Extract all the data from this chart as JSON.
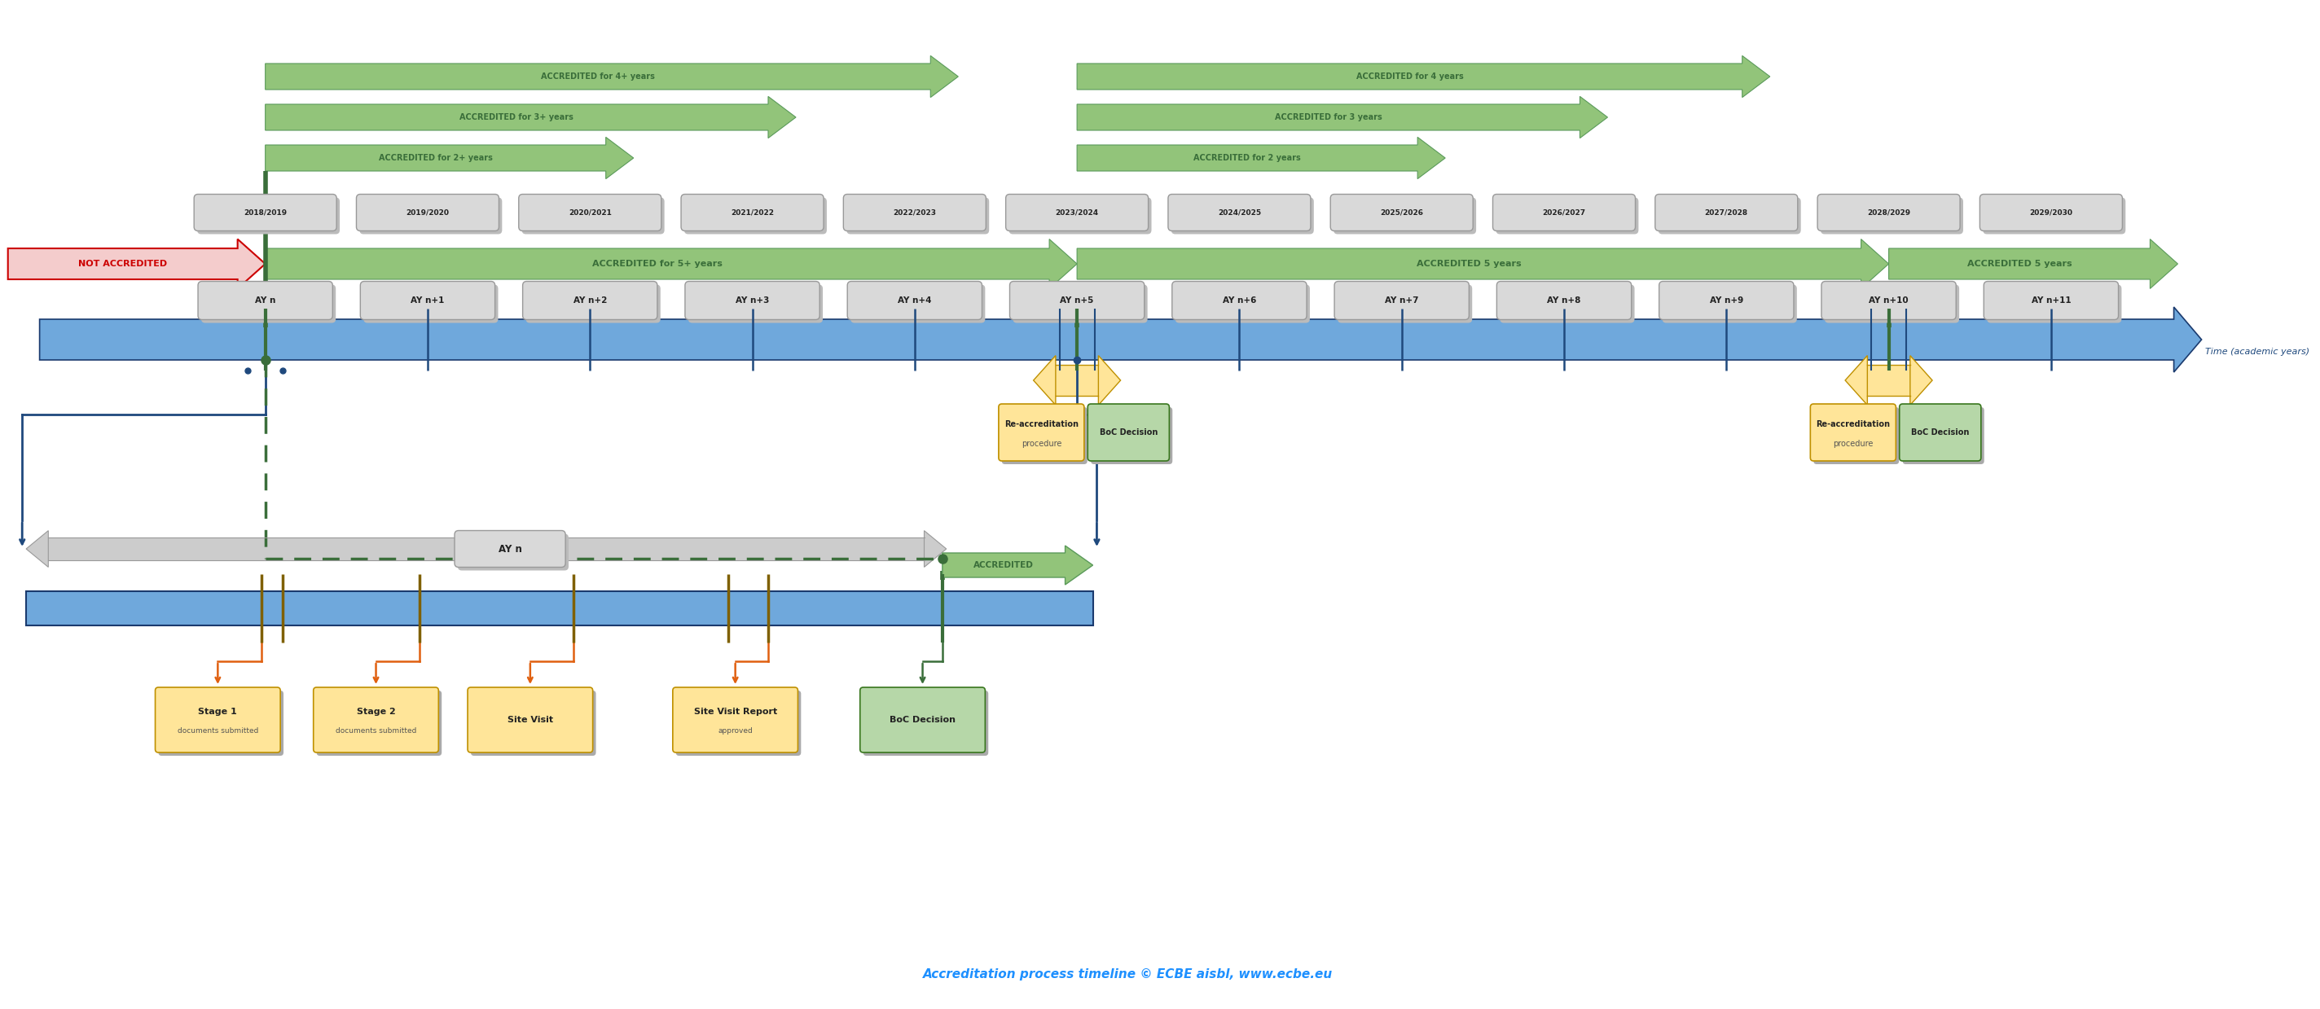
{
  "fig_width": 28.48,
  "fig_height": 12.39,
  "bg_color": "#ffffff",
  "title": "Accreditation process timeline © ECBE aisbl, www.ecbe.eu",
  "title_color": "#1E90FF",
  "title_fontsize": 11,
  "year_labels": [
    "2018/2019",
    "2019/2020",
    "2020/2021",
    "2021/2022",
    "2022/2023",
    "2023/2024",
    "2024/2025",
    "2025/2026",
    "2026/2027",
    "2027/2028",
    "2028/2029",
    "2029/2030"
  ],
  "ay_labels": [
    "AY n",
    "AY n+1",
    "AY n+2",
    "AY n+3",
    "AY n+4",
    "AY n+5",
    "AY n+6",
    "AY n+7",
    "AY n+8",
    "AY n+9",
    "AY n+10",
    "AY n+11"
  ],
  "green_fill": "#92c47a",
  "green_edge": "#5a9a5a",
  "green_dark": "#3a6e3a",
  "yellow_fill": "#ffe599",
  "yellow_edge": "#bf9000",
  "red_fill": "#f4cccc",
  "red_edge": "#cc0000",
  "blue_fill": "#6fa8dc",
  "blue_edge": "#1a3a6e",
  "dark_blue": "#1f497d",
  "orange_color": "#e06010",
  "boc_fill": "#b6d7a8",
  "boc_edge": "#38761d",
  "gray_fill": "#d9d9d9",
  "gray_edge": "#999999",
  "olive_color": "#7f6000",
  "comment_color": "#1155cc"
}
